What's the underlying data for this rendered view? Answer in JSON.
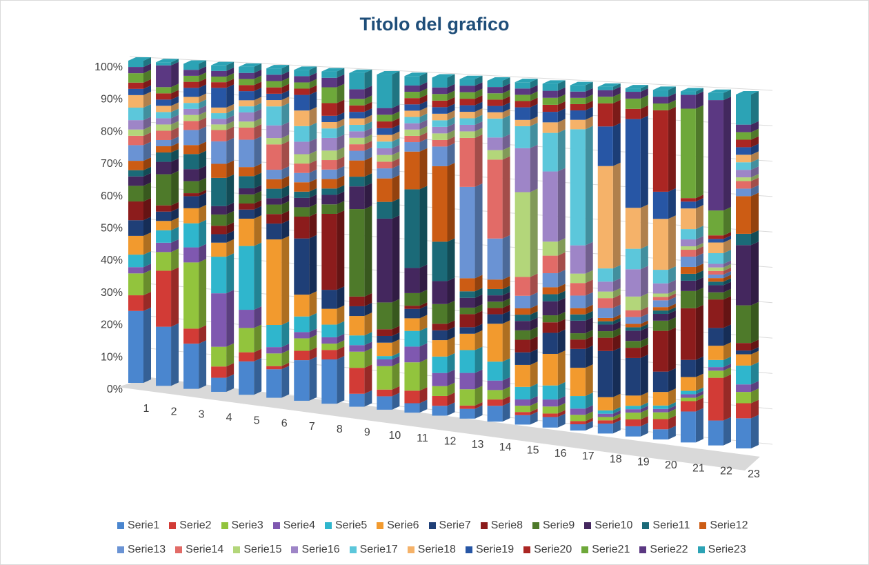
{
  "chart_data": {
    "type": "bar",
    "stacked": "100%",
    "view": "3d",
    "title": "Titolo del grafico",
    "categories": [
      "1",
      "2",
      "3",
      "4",
      "5",
      "6",
      "7",
      "8",
      "9",
      "10",
      "11",
      "12",
      "13",
      "14",
      "15",
      "16",
      "17",
      "18",
      "19",
      "20",
      "21",
      "22",
      "23"
    ],
    "y_ticks": [
      "0%",
      "10%",
      "20%",
      "30%",
      "40%",
      "50%",
      "60%",
      "70%",
      "80%",
      "90%",
      "100%"
    ],
    "ylim": [
      0,
      100
    ],
    "legend_position": "bottom",
    "series": [
      {
        "name": "Serie1",
        "color": "#4a86cf",
        "values": [
          23,
          19,
          15,
          5,
          11,
          9,
          13,
          14,
          4,
          4,
          3,
          3,
          3,
          5,
          3,
          3,
          2,
          3,
          3,
          3,
          9,
          7,
          8
        ]
      },
      {
        "name": "Serie2",
        "color": "#d23b36",
        "values": [
          5,
          18,
          5,
          4,
          3,
          1,
          3,
          3,
          8,
          2,
          4,
          3,
          1,
          2,
          1,
          1,
          1,
          1,
          2,
          3,
          3,
          12,
          4
        ]
      },
      {
        "name": "Serie3",
        "color": "#92c43d",
        "values": [
          7,
          6,
          22,
          7,
          8,
          4,
          4,
          2,
          5,
          7,
          9,
          3,
          5,
          3,
          2,
          2,
          2,
          1,
          2,
          2,
          1,
          2,
          3
        ]
      },
      {
        "name": "Serie4",
        "color": "#7f58b0",
        "values": [
          2,
          3,
          5,
          19,
          6,
          2,
          2,
          2,
          2,
          2,
          5,
          4,
          5,
          3,
          2,
          2,
          2,
          1,
          1,
          1,
          1,
          1,
          2
        ]
      },
      {
        "name": "Serie5",
        "color": "#2fb6cd",
        "values": [
          4,
          4,
          8,
          13,
          21,
          7,
          5,
          4,
          3,
          1,
          5,
          5,
          7,
          6,
          4,
          4,
          4,
          1,
          1,
          1,
          1,
          2,
          5
        ]
      },
      {
        "name": "Serie6",
        "color": "#f29a2e",
        "values": [
          6,
          3,
          5,
          5,
          9,
          27,
          7,
          5,
          6,
          4,
          4,
          5,
          5,
          12,
          7,
          9,
          9,
          4,
          3,
          4,
          4,
          4,
          3
        ]
      },
      {
        "name": "Serie7",
        "color": "#1f3f77",
        "values": [
          5,
          3,
          4,
          3,
          3,
          5,
          18,
          6,
          3,
          2,
          3,
          3,
          2,
          3,
          4,
          6,
          6,
          14,
          11,
          6,
          5,
          5,
          1
        ]
      },
      {
        "name": "Serie8",
        "color": "#8c1c1c",
        "values": [
          6,
          2,
          1,
          3,
          2,
          3,
          7,
          24,
          3,
          2,
          1,
          2,
          4,
          2,
          4,
          3,
          3,
          4,
          3,
          12,
          15,
          8,
          2
        ]
      },
      {
        "name": "Serie9",
        "color": "#4e7a2a",
        "values": [
          5,
          10,
          4,
          4,
          3,
          3,
          3,
          3,
          27,
          8,
          4,
          6,
          2,
          2,
          3,
          2,
          2,
          2,
          2,
          3,
          5,
          2,
          10
        ]
      },
      {
        "name": "Serie10",
        "color": "#44275e",
        "values": [
          3,
          4,
          4,
          3,
          2,
          2,
          3,
          3,
          7,
          25,
          8,
          7,
          3,
          2,
          3,
          4,
          4,
          2,
          3,
          2,
          3,
          2,
          16
        ]
      },
      {
        "name": "Serie11",
        "color": "#1b6a78",
        "values": [
          2,
          3,
          5,
          10,
          4,
          3,
          2,
          2,
          3,
          5,
          25,
          12,
          2,
          2,
          2,
          2,
          2,
          1,
          1,
          1,
          2,
          1,
          3
        ]
      },
      {
        "name": "Serie12",
        "color": "#cc5c14",
        "values": [
          3,
          2,
          3,
          5,
          3,
          3,
          3,
          3,
          5,
          7,
          12,
          23,
          4,
          3,
          2,
          2,
          2,
          1,
          1,
          1,
          2,
          1,
          10
        ]
      },
      {
        "name": "Serie13",
        "color": "#6a93d4",
        "values": [
          5,
          2,
          5,
          8,
          9,
          3,
          3,
          3,
          3,
          3,
          3,
          6,
          28,
          13,
          4,
          4,
          4,
          3,
          2,
          2,
          3,
          1,
          2
        ]
      },
      {
        "name": "Serie14",
        "color": "#e26b67",
        "values": [
          3,
          3,
          3,
          4,
          4,
          8,
          3,
          3,
          2,
          2,
          2,
          2,
          15,
          25,
          6,
          5,
          4,
          3,
          2,
          1,
          2,
          1,
          2
        ]
      },
      {
        "name": "Serie15",
        "color": "#b3d67a",
        "values": [
          2,
          2,
          2,
          2,
          2,
          2,
          3,
          3,
          2,
          2,
          2,
          2,
          2,
          3,
          27,
          4,
          3,
          2,
          4,
          1,
          1,
          1,
          1
        ]
      },
      {
        "name": "Serie16",
        "color": "#9e85c7",
        "values": [
          3,
          2,
          2,
          2,
          3,
          4,
          4,
          4,
          2,
          2,
          2,
          2,
          2,
          4,
          14,
          20,
          9,
          3,
          8,
          3,
          2,
          1,
          2
        ]
      },
      {
        "name": "Serie17",
        "color": "#5cc7db",
        "values": [
          4,
          2,
          2,
          2,
          2,
          6,
          5,
          3,
          2,
          2,
          2,
          2,
          2,
          6,
          7,
          11,
          37,
          4,
          6,
          4,
          3,
          3,
          2
        ]
      },
      {
        "name": "Serie18",
        "color": "#f5b269",
        "values": [
          4,
          2,
          2,
          2,
          2,
          2,
          5,
          2,
          2,
          2,
          2,
          2,
          2,
          2,
          2,
          3,
          3,
          31,
          12,
          15,
          6,
          3,
          2
        ]
      },
      {
        "name": "Serie19",
        "color": "#2756a5",
        "values": [
          2,
          2,
          3,
          7,
          3,
          2,
          5,
          2,
          2,
          2,
          2,
          2,
          2,
          2,
          4,
          3,
          3,
          12,
          26,
          8,
          2,
          1,
          2
        ]
      },
      {
        "name": "Serie20",
        "color": "#ab2623",
        "values": [
          2,
          2,
          2,
          2,
          2,
          2,
          2,
          4,
          2,
          2,
          2,
          2,
          2,
          2,
          2,
          2,
          2,
          7,
          3,
          24,
          1,
          1,
          2
        ]
      },
      {
        "name": "Serie21",
        "color": "#6ea83a",
        "values": [
          3,
          2,
          2,
          2,
          2,
          2,
          2,
          5,
          2,
          2,
          2,
          2,
          2,
          2,
          2,
          2,
          2,
          2,
          3,
          2,
          26,
          7,
          2
        ]
      },
      {
        "name": "Serie22",
        "color": "#5b3882",
        "values": [
          2,
          7,
          2,
          2,
          2,
          2,
          2,
          3,
          3,
          2,
          2,
          2,
          2,
          2,
          2,
          2,
          2,
          2,
          2,
          2,
          4,
          31,
          2
        ]
      },
      {
        "name": "Serie23",
        "color": "#2ca3b5",
        "values": [
          2,
          1,
          2,
          2,
          2,
          2,
          2,
          2,
          5,
          10,
          3,
          3,
          2,
          2,
          2,
          2,
          2,
          1,
          1,
          2,
          1,
          2,
          8
        ]
      }
    ]
  }
}
